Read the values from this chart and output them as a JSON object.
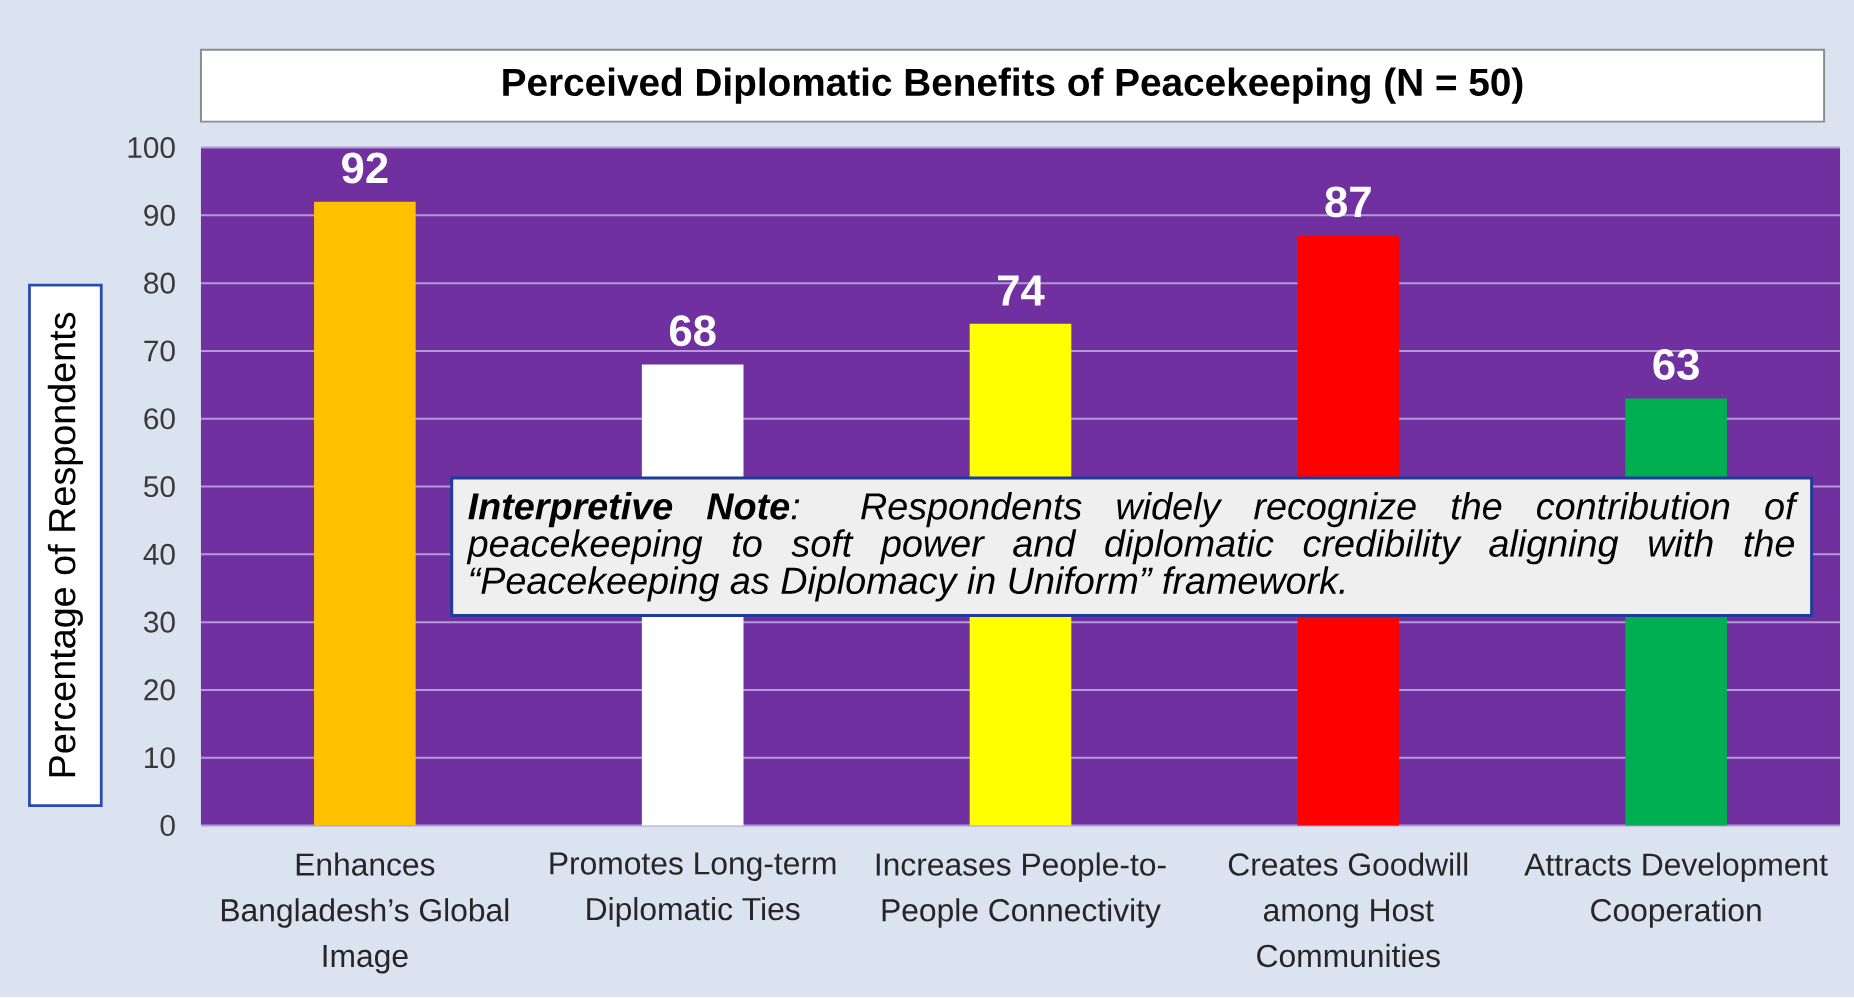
{
  "chart_data": {
    "type": "bar",
    "title": "Perceived Diplomatic Benefits of Peacekeeping (N = 50)",
    "ylabel": "Percentage of Respondents",
    "categories": [
      "Enhances Bangladesh’s Global Image",
      "Promotes Long-term Diplomatic Ties",
      "Increases People-to-People Connectivity",
      "Creates Goodwill among Host Communities",
      "Attracts Development Cooperation"
    ],
    "values": [
      92,
      68,
      74,
      87,
      63
    ],
    "colors": [
      "#ffc000",
      "#ffffff",
      "#ffff00",
      "#ff0000",
      "#00b050"
    ],
    "ylim": [
      0,
      100
    ],
    "yticks": [
      0,
      10,
      20,
      30,
      40,
      50,
      60,
      70,
      80,
      90,
      100
    ],
    "grid": "y",
    "data_labels": true,
    "annotations": [
      "**Interpretive Note**: Respondents widely recognize the contribution of peacekeeping to soft power and diplomatic credibility aligning with the “Peacekeeping as Diplomacy in Uniform” framework."
    ]
  }
}
